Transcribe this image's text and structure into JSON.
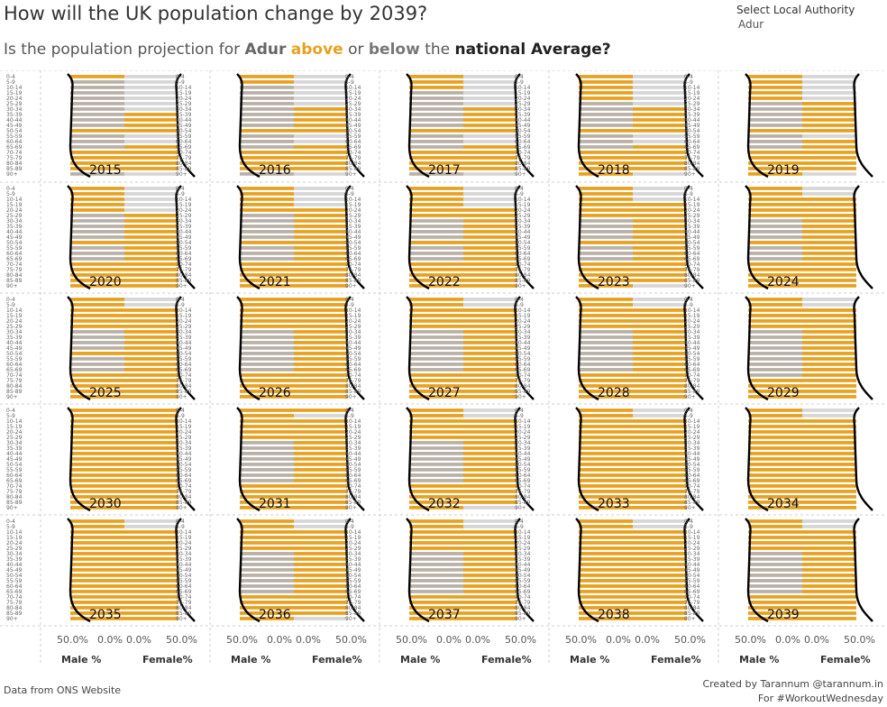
{
  "header": {
    "title": "How will the UK population change by 2039?",
    "subtitle_prefix": "Is the population projection for",
    "subtitle_la": "Adur",
    "subtitle_above": "above",
    "subtitle_or": "or",
    "subtitle_below": "below",
    "subtitle_the": "the",
    "subtitle_national": "national Average?"
  },
  "filter": {
    "label": "Select Local Authority",
    "value": "Adur"
  },
  "footer": {
    "source": "Data from ONS Website",
    "credit_line1": "Created by Tarannum @tarannum.in",
    "credit_line2": "For #WorkoutWednesday"
  },
  "colors": {
    "above": "#e8a11f",
    "below_male": "#b9b0a6",
    "below_female": "#d6d6d6",
    "national_line": "#000000"
  },
  "chart_data": {
    "type": "bar",
    "layout": "small-multiples population pyramids, 5 columns x 5 rows",
    "years": [
      2015,
      2016,
      2017,
      2018,
      2019,
      2020,
      2021,
      2022,
      2023,
      2024,
      2025,
      2026,
      2027,
      2028,
      2029,
      2030,
      2031,
      2032,
      2033,
      2034,
      2035,
      2036,
      2037,
      2038,
      2039
    ],
    "age_groups": [
      "0-4",
      "5-9",
      "10-14",
      "15-19",
      "20-24",
      "25-29",
      "30-34",
      "35-39",
      "40-44",
      "45-49",
      "50-54",
      "55-59",
      "60-64",
      "65-69",
      "70-74",
      "75-79",
      "80-84",
      "85-89",
      "90+"
    ],
    "x_axis": {
      "male_ticks": [
        "50.0%",
        "0.0%"
      ],
      "female_ticks": [
        "0.0%",
        "50.0%"
      ],
      "male_label": "Male %",
      "female_label": "Female%"
    },
    "legend": {
      "above": "above",
      "below": "below",
      "line": "national Average"
    },
    "series": [
      {
        "year": 2015,
        "male_above": [
          1,
          0,
          0,
          0,
          0,
          0,
          0,
          0,
          0,
          0,
          1,
          0,
          0,
          0,
          1,
          1,
          1,
          1,
          0
        ],
        "female_above": [
          0,
          0,
          0,
          0,
          0,
          0,
          0,
          1,
          1,
          1,
          1,
          0,
          0,
          1,
          1,
          1,
          1,
          1,
          0
        ]
      },
      {
        "year": 2016,
        "male_above": [
          1,
          1,
          0,
          0,
          0,
          0,
          0,
          0,
          0,
          0,
          1,
          0,
          0,
          0,
          1,
          1,
          1,
          1,
          0
        ],
        "female_above": [
          0,
          0,
          0,
          0,
          0,
          0,
          1,
          1,
          1,
          1,
          1,
          0,
          0,
          1,
          1,
          1,
          1,
          1,
          0
        ]
      },
      {
        "year": 2017,
        "male_above": [
          1,
          1,
          1,
          0,
          0,
          0,
          0,
          0,
          0,
          0,
          1,
          0,
          0,
          0,
          1,
          1,
          1,
          1,
          0
        ],
        "female_above": [
          0,
          0,
          0,
          0,
          0,
          0,
          1,
          1,
          1,
          1,
          1,
          0,
          0,
          1,
          1,
          1,
          1,
          1,
          0
        ]
      },
      {
        "year": 2018,
        "male_above": [
          1,
          1,
          1,
          1,
          1,
          0,
          0,
          0,
          0,
          0,
          1,
          0,
          0,
          0,
          1,
          1,
          1,
          1,
          1
        ],
        "female_above": [
          0,
          0,
          0,
          0,
          0,
          0,
          1,
          1,
          1,
          1,
          1,
          0,
          0,
          1,
          1,
          1,
          1,
          1,
          0
        ]
      },
      {
        "year": 2019,
        "male_above": [
          1,
          1,
          1,
          1,
          1,
          0,
          0,
          0,
          0,
          0,
          1,
          0,
          0,
          0,
          1,
          1,
          1,
          1,
          1
        ],
        "female_above": [
          0,
          0,
          0,
          0,
          0,
          1,
          1,
          1,
          1,
          1,
          1,
          0,
          1,
          1,
          1,
          1,
          1,
          1,
          0
        ]
      },
      {
        "year": 2020,
        "male_above": [
          1,
          1,
          1,
          1,
          1,
          0,
          0,
          0,
          0,
          0,
          1,
          0,
          0,
          0,
          1,
          1,
          1,
          1,
          1
        ],
        "female_above": [
          0,
          0,
          0,
          0,
          0,
          1,
          1,
          1,
          1,
          1,
          1,
          1,
          1,
          1,
          1,
          1,
          1,
          1,
          1
        ]
      },
      {
        "year": 2021,
        "male_above": [
          1,
          1,
          1,
          1,
          1,
          0,
          0,
          0,
          0,
          0,
          1,
          0,
          0,
          0,
          1,
          1,
          1,
          1,
          1
        ],
        "female_above": [
          0,
          0,
          0,
          0,
          1,
          1,
          1,
          1,
          1,
          1,
          1,
          1,
          1,
          1,
          1,
          1,
          1,
          1,
          1
        ]
      },
      {
        "year": 2022,
        "male_above": [
          1,
          1,
          1,
          1,
          1,
          1,
          0,
          0,
          0,
          0,
          1,
          0,
          0,
          0,
          1,
          1,
          1,
          1,
          1
        ],
        "female_above": [
          0,
          0,
          0,
          0,
          1,
          1,
          1,
          1,
          1,
          1,
          1,
          1,
          1,
          1,
          1,
          1,
          1,
          1,
          1
        ]
      },
      {
        "year": 2023,
        "male_above": [
          1,
          1,
          1,
          1,
          1,
          1,
          0,
          0,
          0,
          0,
          1,
          0,
          0,
          0,
          1,
          1,
          1,
          1,
          1
        ],
        "female_above": [
          0,
          0,
          0,
          1,
          1,
          1,
          1,
          1,
          1,
          1,
          1,
          1,
          1,
          1,
          1,
          1,
          1,
          1,
          0
        ]
      },
      {
        "year": 2024,
        "male_above": [
          1,
          1,
          1,
          1,
          1,
          1,
          0,
          0,
          0,
          0,
          1,
          0,
          0,
          0,
          1,
          1,
          1,
          1,
          1
        ],
        "female_above": [
          0,
          0,
          1,
          1,
          1,
          1,
          1,
          1,
          1,
          1,
          1,
          1,
          1,
          1,
          1,
          1,
          1,
          1,
          1
        ]
      },
      {
        "year": 2025,
        "male_above": [
          1,
          1,
          1,
          1,
          1,
          1,
          0,
          0,
          0,
          0,
          1,
          0,
          0,
          0,
          1,
          1,
          1,
          1,
          1
        ],
        "female_above": [
          0,
          0,
          1,
          1,
          1,
          1,
          1,
          1,
          1,
          1,
          1,
          1,
          1,
          1,
          1,
          1,
          1,
          1,
          1
        ]
      },
      {
        "year": 2026,
        "male_above": [
          1,
          1,
          1,
          1,
          1,
          1,
          0,
          0,
          0,
          0,
          0,
          0,
          0,
          0,
          1,
          1,
          1,
          1,
          1
        ],
        "female_above": [
          1,
          1,
          1,
          1,
          1,
          1,
          1,
          1,
          1,
          1,
          1,
          1,
          1,
          1,
          1,
          1,
          1,
          1,
          1
        ]
      },
      {
        "year": 2027,
        "male_above": [
          1,
          1,
          1,
          1,
          1,
          1,
          0,
          0,
          0,
          0,
          0,
          0,
          0,
          0,
          1,
          1,
          1,
          1,
          1
        ],
        "female_above": [
          0,
          0,
          1,
          1,
          1,
          1,
          1,
          1,
          1,
          1,
          1,
          1,
          1,
          1,
          1,
          1,
          1,
          1,
          1
        ]
      },
      {
        "year": 2028,
        "male_above": [
          1,
          1,
          1,
          1,
          1,
          1,
          0,
          0,
          0,
          0,
          0,
          0,
          0,
          0,
          1,
          1,
          1,
          1,
          1
        ],
        "female_above": [
          0,
          0,
          1,
          1,
          1,
          1,
          1,
          1,
          1,
          1,
          1,
          1,
          1,
          1,
          1,
          1,
          1,
          1,
          1
        ]
      },
      {
        "year": 2029,
        "male_above": [
          1,
          1,
          1,
          1,
          1,
          1,
          0,
          0,
          0,
          0,
          0,
          0,
          0,
          0,
          0,
          1,
          1,
          1,
          1
        ],
        "female_above": [
          0,
          0,
          1,
          1,
          1,
          1,
          1,
          1,
          1,
          1,
          1,
          1,
          1,
          1,
          1,
          1,
          1,
          1,
          1
        ]
      },
      {
        "year": 2030,
        "male_above": [
          1,
          1,
          1,
          1,
          1,
          1,
          1,
          1,
          1,
          1,
          1,
          1,
          1,
          1,
          1,
          1,
          1,
          1,
          1
        ],
        "female_above": [
          1,
          1,
          1,
          1,
          1,
          1,
          1,
          1,
          1,
          1,
          1,
          1,
          1,
          1,
          1,
          1,
          1,
          1,
          1
        ]
      },
      {
        "year": 2031,
        "male_above": [
          1,
          1,
          1,
          1,
          1,
          1,
          0,
          0,
          0,
          0,
          0,
          0,
          0,
          0,
          1,
          1,
          1,
          1,
          1
        ],
        "female_above": [
          1,
          0,
          1,
          1,
          1,
          1,
          1,
          1,
          1,
          1,
          1,
          1,
          1,
          1,
          1,
          1,
          1,
          1,
          1
        ]
      },
      {
        "year": 2032,
        "male_above": [
          1,
          1,
          1,
          1,
          1,
          1,
          0,
          0,
          0,
          0,
          0,
          0,
          0,
          0,
          1,
          1,
          1,
          1,
          1
        ],
        "female_above": [
          0,
          0,
          1,
          1,
          1,
          1,
          1,
          1,
          1,
          1,
          1,
          1,
          1,
          1,
          1,
          1,
          1,
          1,
          0
        ]
      },
      {
        "year": 2033,
        "male_above": [
          1,
          1,
          1,
          1,
          1,
          1,
          1,
          1,
          1,
          1,
          1,
          1,
          1,
          1,
          1,
          1,
          1,
          1,
          1
        ],
        "female_above": [
          0,
          0,
          1,
          1,
          1,
          1,
          1,
          1,
          1,
          1,
          1,
          1,
          1,
          1,
          1,
          1,
          1,
          1,
          1
        ]
      },
      {
        "year": 2034,
        "male_above": [
          1,
          1,
          1,
          1,
          1,
          1,
          1,
          1,
          1,
          1,
          1,
          1,
          1,
          1,
          1,
          1,
          1,
          1,
          1
        ],
        "female_above": [
          0,
          0,
          1,
          1,
          1,
          1,
          1,
          1,
          1,
          1,
          1,
          1,
          1,
          1,
          1,
          1,
          1,
          1,
          1
        ]
      },
      {
        "year": 2035,
        "male_above": [
          1,
          1,
          1,
          1,
          1,
          1,
          1,
          1,
          1,
          1,
          1,
          1,
          1,
          1,
          1,
          1,
          1,
          1,
          1
        ],
        "female_above": [
          0,
          0,
          1,
          1,
          1,
          1,
          1,
          1,
          1,
          1,
          1,
          1,
          1,
          1,
          1,
          1,
          1,
          1,
          1
        ]
      },
      {
        "year": 2036,
        "male_above": [
          1,
          1,
          1,
          1,
          1,
          1,
          0,
          0,
          0,
          0,
          0,
          0,
          0,
          0,
          1,
          1,
          1,
          1,
          1
        ],
        "female_above": [
          0,
          0,
          1,
          1,
          1,
          1,
          1,
          1,
          1,
          1,
          1,
          1,
          1,
          1,
          1,
          1,
          1,
          1,
          0
        ]
      },
      {
        "year": 2037,
        "male_above": [
          1,
          1,
          1,
          1,
          1,
          1,
          0,
          0,
          0,
          0,
          0,
          0,
          0,
          0,
          1,
          1,
          1,
          1,
          1
        ],
        "female_above": [
          0,
          0,
          1,
          1,
          1,
          1,
          1,
          1,
          1,
          1,
          1,
          1,
          1,
          1,
          1,
          1,
          1,
          1,
          1
        ]
      },
      {
        "year": 2038,
        "male_above": [
          1,
          1,
          1,
          1,
          1,
          1,
          1,
          1,
          1,
          1,
          1,
          1,
          1,
          1,
          1,
          1,
          1,
          1,
          1
        ],
        "female_above": [
          0,
          0,
          1,
          1,
          1,
          1,
          1,
          1,
          1,
          1,
          1,
          1,
          1,
          1,
          1,
          1,
          1,
          1,
          1
        ]
      },
      {
        "year": 2039,
        "male_above": [
          1,
          1,
          1,
          1,
          1,
          1,
          0,
          0,
          0,
          0,
          0,
          0,
          0,
          0,
          1,
          1,
          1,
          1,
          1
        ],
        "female_above": [
          0,
          0,
          1,
          1,
          1,
          1,
          1,
          1,
          1,
          1,
          1,
          1,
          1,
          1,
          1,
          1,
          1,
          1,
          1
        ]
      }
    ]
  }
}
